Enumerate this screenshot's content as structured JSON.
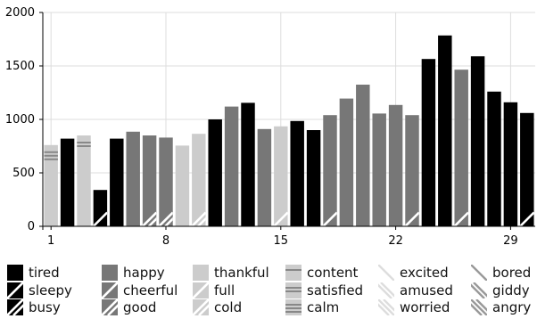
{
  "chart_data": {
    "type": "bar",
    "x": [
      1,
      2,
      3,
      4,
      5,
      6,
      7,
      8,
      9,
      10,
      11,
      12,
      13,
      14,
      15,
      16,
      17,
      18,
      19,
      20,
      21,
      22,
      23,
      24,
      25,
      26,
      27,
      28,
      29,
      30
    ],
    "values": [
      760,
      820,
      850,
      340,
      820,
      885,
      850,
      830,
      755,
      865,
      1000,
      1120,
      1155,
      910,
      935,
      985,
      900,
      1040,
      1195,
      1325,
      1055,
      1135,
      1040,
      1565,
      1785,
      1465,
      1590,
      1260,
      1160,
      1060
    ],
    "moods": [
      "calm",
      "tired",
      "satisfied",
      "sleepy",
      "tired",
      "happy",
      "good",
      "good",
      "thankful",
      "cold",
      "tired",
      "happy",
      "tired",
      "happy",
      "full",
      "tired",
      "tired",
      "cheerful",
      "happy",
      "happy",
      "happy",
      "happy",
      "cheerful",
      "tired",
      "tired",
      "cheerful",
      "tired",
      "tired",
      "tired",
      "sleepy"
    ],
    "xticks": [
      1,
      8,
      15,
      22,
      29
    ],
    "xtick_labels": [
      "1",
      "8",
      "15",
      "22",
      "29"
    ],
    "yticks": [
      0,
      500,
      1000,
      1500,
      2000
    ],
    "ytick_labels": [
      "0",
      "500",
      "1000",
      "1500",
      "2000"
    ],
    "ylim": [
      0,
      2000
    ],
    "xlim": [
      0.5,
      30.5
    ],
    "title": "",
    "xlabel": "",
    "ylabel": "",
    "grid": true,
    "legend_position": "bottom"
  },
  "colors": {
    "black": "#000000",
    "dark_gray": "#777777",
    "light_gray": "#cccccc",
    "grid": "#dddddd",
    "axis": "#000000"
  },
  "legend": [
    {
      "label": "tired",
      "base": "black",
      "pattern": "none"
    },
    {
      "label": "sleepy",
      "base": "black",
      "pattern": "slash"
    },
    {
      "label": "busy",
      "base": "black",
      "pattern": "double-slash"
    },
    {
      "label": "happy",
      "base": "dark_gray",
      "pattern": "none"
    },
    {
      "label": "cheerful",
      "base": "dark_gray",
      "pattern": "slash"
    },
    {
      "label": "good",
      "base": "dark_gray",
      "pattern": "double-slash"
    },
    {
      "label": "thankful",
      "base": "light_gray",
      "pattern": "none"
    },
    {
      "label": "full",
      "base": "light_gray",
      "pattern": "slash"
    },
    {
      "label": "cold",
      "base": "light_gray",
      "pattern": "double-slash"
    },
    {
      "label": "content",
      "base": "light_gray",
      "pattern": "hline-1"
    },
    {
      "label": "satisfied",
      "base": "light_gray",
      "pattern": "hline-2"
    },
    {
      "label": "calm",
      "base": "light_gray",
      "pattern": "hline-3"
    },
    {
      "label": "excited",
      "base": "white",
      "pattern": "backslash"
    },
    {
      "label": "amused",
      "base": "white",
      "pattern": "double-backslash"
    },
    {
      "label": "worried",
      "base": "white",
      "pattern": "triple-backslash"
    },
    {
      "label": "bored",
      "base": "white",
      "pattern": "dark-backslash"
    },
    {
      "label": "giddy",
      "base": "white",
      "pattern": "dark-double-backslash"
    },
    {
      "label": "angry",
      "base": "white",
      "pattern": "dark-triple-backslash"
    }
  ]
}
